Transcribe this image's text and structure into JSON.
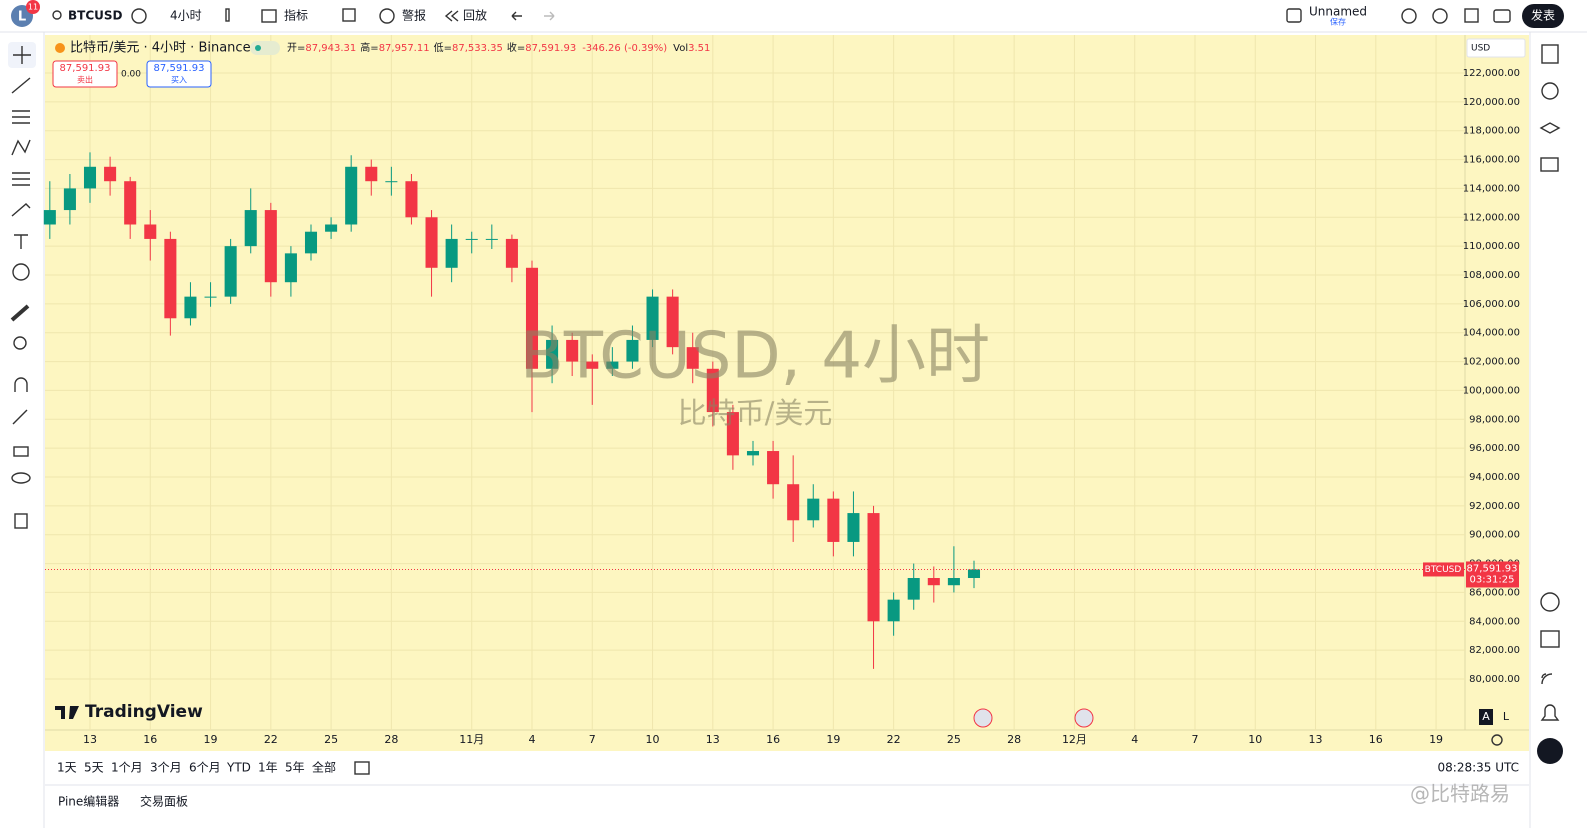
{
  "ui": {
    "avatar": "L",
    "badge": "11",
    "symbol": "BTCUSD",
    "interval": "4小时",
    "indicators": "指标",
    "alerts": "警报",
    "replay": "回放",
    "layout_name": "Unnamed",
    "save": "保存",
    "publish": "发表",
    "legend": {
      "name": "比特币/美元 · 4小时 · Binance",
      "open_label": "开=",
      "open": "87,943.31",
      "high_label": "高=",
      "high": "87,957.11",
      "low_label": "低=",
      "low": "87,533.35",
      "close_label": "收=",
      "close": "87,591.93",
      "change": "-346.26 (-0.39%)",
      "vol_label": "Vol",
      "vol": "3.51"
    },
    "sell_price": "87,591.93",
    "sell": "卖出",
    "spread": "0.00",
    "buy_price": "87,591.93",
    "buy": "买入",
    "watermark": "BTCUSD, 4小时",
    "watermark_sub": "比特币/美元",
    "logo": "TradingView",
    "currency": "USD",
    "price_tag_symbol": "BTCUSD",
    "price_tag_value": "87,591.93",
    "price_tag_countdown": "03:31:25",
    "scale_auto": "A",
    "scale_log": "L",
    "ranges": [
      "1天",
      "5天",
      "1个月",
      "3个月",
      "6个月",
      "YTD",
      "1年",
      "5年",
      "全部"
    ],
    "clock": "08:28:35 UTC",
    "tabs": [
      "Pine编辑器",
      "交易面板"
    ],
    "corner_watermark": "@比特路易"
  },
  "chart_data": {
    "type": "candlestick",
    "up_color": "#089981",
    "down_color": "#f23645",
    "grid": true,
    "x": [
      -2,
      -1,
      0,
      1,
      2,
      3,
      4,
      5,
      6,
      7,
      8,
      9,
      10,
      11,
      12,
      13,
      14,
      15,
      16,
      17,
      18,
      19,
      20,
      21,
      22,
      23,
      24,
      25,
      26,
      27,
      28,
      29,
      30,
      31,
      32,
      33,
      34,
      35,
      36,
      37,
      38,
      39,
      40,
      41,
      42,
      43,
      44
    ],
    "open": [
      111500,
      112500,
      114000,
      115500,
      114500,
      111500,
      110500,
      105000,
      106500,
      106500,
      110000,
      112500,
      107500,
      109500,
      111000,
      111500,
      115500,
      114500,
      114500,
      112000,
      108500,
      110500,
      110500,
      110500,
      108500,
      101500,
      103500,
      102000,
      101500,
      102000,
      103500,
      106500,
      103000,
      101500,
      98500,
      95500,
      95800,
      93500,
      91000,
      92500,
      89500,
      91500,
      84000,
      85500,
      87000,
      86500,
      87000
    ],
    "high": [
      114500,
      115000,
      116500,
      116200,
      114800,
      112500,
      111000,
      107500,
      107500,
      110500,
      114000,
      113000,
      110000,
      111500,
      112000,
      116300,
      116000,
      115500,
      115000,
      112500,
      111500,
      111000,
      111500,
      110800,
      109000,
      104500,
      104000,
      102500,
      103000,
      104500,
      107000,
      107000,
      104000,
      102000,
      99000,
      96500,
      96500,
      95500,
      93500,
      93000,
      93000,
      92000,
      86000,
      88000,
      87800,
      89200,
      88200
    ],
    "low": [
      110500,
      111500,
      113000,
      113500,
      110500,
      109000,
      103800,
      104500,
      105800,
      106000,
      109500,
      106500,
      106500,
      109000,
      110500,
      111000,
      113500,
      113500,
      111500,
      106500,
      107500,
      109500,
      109800,
      107500,
      98500,
      100500,
      101000,
      99000,
      101000,
      101500,
      103000,
      102500,
      100500,
      97500,
      94500,
      94800,
      92500,
      89500,
      90500,
      88500,
      88500,
      80700,
      83000,
      84800,
      85300,
      86000,
      86300
    ],
    "close": [
      112500,
      114000,
      115500,
      114500,
      111500,
      110500,
      105000,
      106500,
      106500,
      110000,
      112500,
      107500,
      109500,
      111000,
      111500,
      115500,
      114500,
      114500,
      112000,
      108500,
      110500,
      110500,
      110500,
      108500,
      101500,
      103500,
      102000,
      101500,
      102000,
      103500,
      106500,
      103000,
      101500,
      98500,
      95500,
      95800,
      93500,
      91000,
      92500,
      89500,
      91500,
      84000,
      85500,
      87000,
      86500,
      87000,
      87591.93
    ],
    "xlim": [
      -2.24,
      68.44
    ],
    "xticks": [
      {
        "value": 0,
        "label": "13"
      },
      {
        "value": 3,
        "label": "16"
      },
      {
        "value": 6,
        "label": "19"
      },
      {
        "value": 9,
        "label": "22"
      },
      {
        "value": 12,
        "label": "25"
      },
      {
        "value": 15,
        "label": "28"
      },
      {
        "value": 19,
        "label": "11月"
      },
      {
        "value": 22,
        "label": "4"
      },
      {
        "value": 25,
        "label": "7"
      },
      {
        "value": 28,
        "label": "10"
      },
      {
        "value": 31,
        "label": "13"
      },
      {
        "value": 34,
        "label": "16"
      },
      {
        "value": 37,
        "label": "19"
      },
      {
        "value": 40,
        "label": "22"
      },
      {
        "value": 43,
        "label": "25"
      },
      {
        "value": 46,
        "label": "28"
      },
      {
        "value": 49,
        "label": "12月"
      },
      {
        "value": 52,
        "label": "4"
      },
      {
        "value": 55,
        "label": "7"
      },
      {
        "value": 58,
        "label": "10"
      },
      {
        "value": 61,
        "label": "13"
      },
      {
        "value": 64,
        "label": "16"
      },
      {
        "value": 67,
        "label": "19"
      }
    ],
    "ylim": [
      76466,
      124633
    ],
    "yticks": [
      {
        "value": 80000,
        "label": "80,000.00"
      },
      {
        "value": 82000,
        "label": "82,000.00"
      },
      {
        "value": 84000,
        "label": "84,000.00"
      },
      {
        "value": 86000,
        "label": "86,000.00"
      },
      {
        "value": 88000,
        "label": "88,000.00"
      },
      {
        "value": 90000,
        "label": "90,000.00"
      },
      {
        "value": 92000,
        "label": "92,000.00"
      },
      {
        "value": 94000,
        "label": "94,000.00"
      },
      {
        "value": 96000,
        "label": "96,000.00"
      },
      {
        "value": 98000,
        "label": "98,000.00"
      },
      {
        "value": 100000,
        "label": "100,000.00"
      },
      {
        "value": 102000,
        "label": "102,000.00"
      },
      {
        "value": 104000,
        "label": "104,000.00"
      },
      {
        "value": 106000,
        "label": "106,000.00"
      },
      {
        "value": 108000,
        "label": "108,000.00"
      },
      {
        "value": 110000,
        "label": "110,000.00"
      },
      {
        "value": 112000,
        "label": "112,000.00"
      },
      {
        "value": 114000,
        "label": "114,000.00"
      },
      {
        "value": 116000,
        "label": "116,000.00"
      },
      {
        "value": 118000,
        "label": "118,000.00"
      },
      {
        "value": 120000,
        "label": "120,000.00"
      },
      {
        "value": 122000,
        "label": "122,000.00"
      }
    ]
  }
}
